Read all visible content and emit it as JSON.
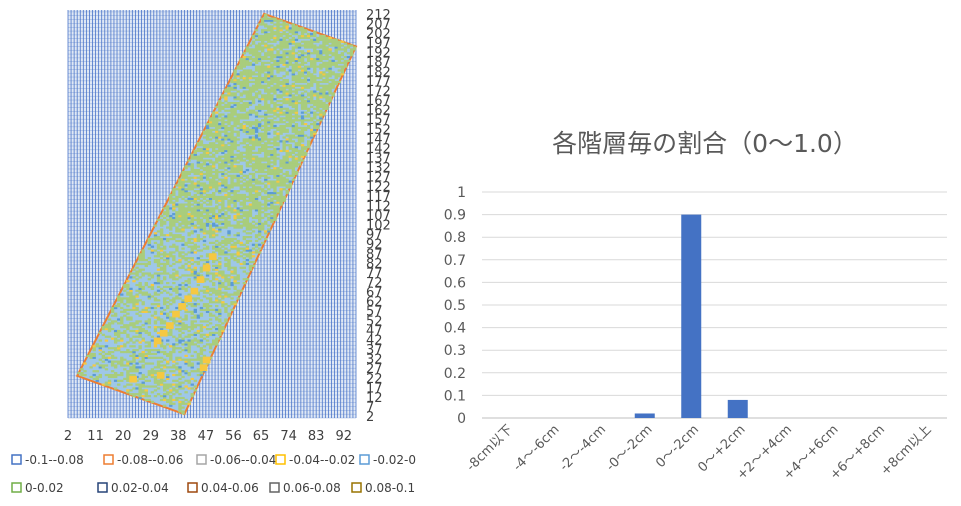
{
  "chart_data": [
    {
      "type": "heatmap",
      "title": "",
      "x_ticks": [
        "2",
        "11",
        "20",
        "29",
        "38",
        "47",
        "56",
        "65",
        "74",
        "83",
        "92"
      ],
      "y_ticks": [
        "212",
        "207",
        "202",
        "197",
        "192",
        "187",
        "182",
        "177",
        "172",
        "167",
        "162",
        "157",
        "152",
        "147",
        "142",
        "137",
        "132",
        "127",
        "122",
        "117",
        "112",
        "107",
        "102",
        "97",
        "92",
        "87",
        "82",
        "77",
        "72",
        "67",
        "62",
        "57",
        "52",
        "47",
        "42",
        "37",
        "32",
        "27",
        "22",
        "17",
        "12",
        "7",
        "2"
      ],
      "xlim": [
        2,
        96
      ],
      "ylim": [
        1,
        214
      ],
      "grid": true,
      "legend_position": "bottom",
      "legend": [
        {
          "label": "-0.1--0.08",
          "color": "#4472c4"
        },
        {
          "label": "-0.08--0.06",
          "color": "#ed7d31"
        },
        {
          "label": "-0.06--0.04",
          "color": "#a5a5a5"
        },
        {
          "label": "-0.04--0.02",
          "color": "#ffc000"
        },
        {
          "label": "-0.02-0",
          "color": "#5b9bd5"
        },
        {
          "label": "0-0.02",
          "color": "#70ad47"
        },
        {
          "label": "0.02-0.04",
          "color": "#264478"
        },
        {
          "label": "0.04-0.06",
          "color": "#9e480e"
        },
        {
          "label": "0.06-0.08",
          "color": "#636363"
        },
        {
          "label": "0.08-0.1",
          "color": "#997300"
        }
      ]
    },
    {
      "type": "bar",
      "title": "各階層毎の割合（0〜1.0）",
      "categories": [
        "-8cm以下",
        "-4〜-6cm",
        "-2〜-4cm",
        "-0〜-2cm",
        "0〜-2cm",
        "0〜+2cm",
        "+2〜+4cm",
        "+4〜+6cm",
        "+6〜+8cm",
        "+8cm以上"
      ],
      "values": [
        0,
        0,
        0,
        0.02,
        0.9,
        0.08,
        0,
        0,
        0,
        0
      ],
      "y_ticks": [
        "0",
        "0.1",
        "0.2",
        "0.3",
        "0.4",
        "0.5",
        "0.6",
        "0.7",
        "0.8",
        "0.9",
        "1"
      ],
      "ylim": [
        0,
        1
      ],
      "grid": true,
      "bar_color": "#4472c4"
    }
  ]
}
